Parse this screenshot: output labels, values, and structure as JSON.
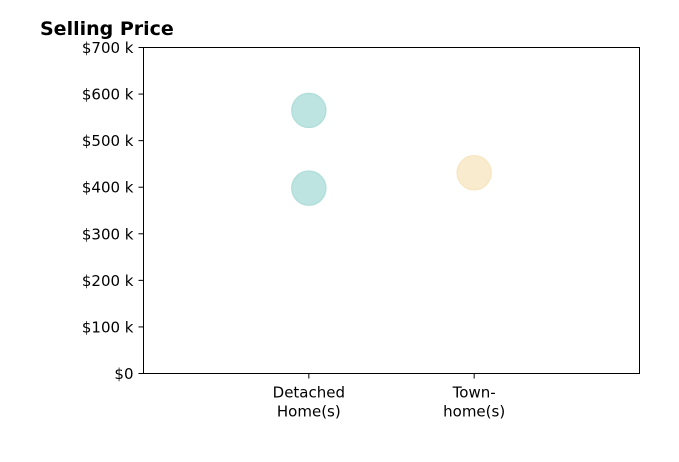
{
  "chart_data": {
    "type": "scatter",
    "title": "Selling Price",
    "xlabel": "",
    "ylabel": "",
    "categories": [
      [
        "Detached",
        "Home(s)"
      ],
      [
        "Town-",
        "home(s)"
      ]
    ],
    "ylim": [
      0,
      700
    ],
    "y_ticks": [
      0,
      100,
      200,
      300,
      400,
      500,
      600,
      700
    ],
    "y_tick_labels": [
      "$0",
      "$100 k",
      "$200 k",
      "$300 k",
      "$400 k",
      "$500 k",
      "$600 k",
      "$700 k"
    ],
    "grid": false,
    "points": [
      {
        "category_index": 0,
        "y": 565,
        "color": "#b2dfdb"
      },
      {
        "category_index": 0,
        "y": 398,
        "color": "#b2dfdb"
      },
      {
        "category_index": 1,
        "y": 431,
        "color": "#f8e7c4"
      }
    ],
    "colors": {
      "detached": "#b2dfdb",
      "townhome": "#f8e7c4"
    }
  }
}
